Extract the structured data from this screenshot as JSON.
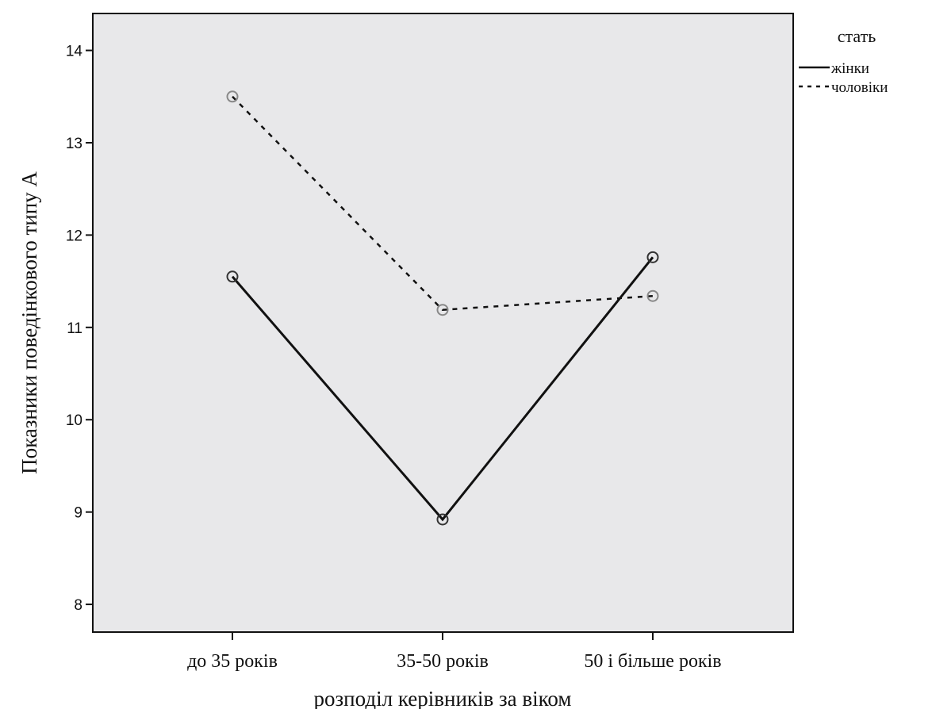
{
  "chart_data": {
    "type": "line",
    "categories": [
      "до 35 років",
      "35-50 років",
      "50 і більше років"
    ],
    "series": [
      {
        "name": "жінки",
        "values": [
          11.55,
          8.92,
          11.76
        ],
        "style": "solid",
        "color": "#111111"
      },
      {
        "name": "чоловіки",
        "values": [
          13.5,
          11.19,
          11.34
        ],
        "style": "dashed",
        "color": "#111111"
      }
    ],
    "title": "",
    "xlabel": "розподіл керівників за віком",
    "ylabel": "Показники поведінкового типу А",
    "ylim": [
      7.7,
      14.4
    ],
    "yticks": [
      8,
      9,
      10,
      11,
      12,
      13,
      14
    ],
    "legend_title": "стать",
    "legend_position": "top-right, outside plot",
    "grid": false,
    "plot_background": "#e8e8ea"
  }
}
